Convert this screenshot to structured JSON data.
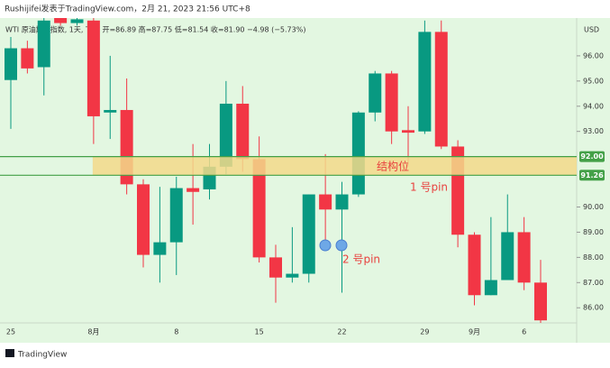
{
  "header": "Rushijifei发表于TradingView.com，2月 21, 2023 21:56 UTC+8",
  "legend": "WTI 原油期货指数, 1天, TVC  开=86.89  高=87.75  低=81.54  收=81.90  −4.98 (−5.73%)",
  "currency": "USD",
  "brand": "TradingView",
  "chart_data": {
    "type": "candlestick",
    "categories": [
      "25",
      null,
      null,
      null,
      null,
      "8月",
      null,
      null,
      null,
      null,
      "8",
      null,
      null,
      null,
      null,
      "15",
      null,
      null,
      null,
      null,
      "22",
      null,
      null,
      null,
      null,
      "29",
      null,
      null,
      "9月",
      null,
      null,
      "6",
      null
    ],
    "open": [
      95.04,
      96.3,
      95.55,
      97.5,
      97.3,
      97.4,
      93.75,
      93.85,
      90.9,
      88.1,
      88.6,
      90.75,
      90.7,
      91.6,
      94.1,
      91.9,
      88.0,
      87.2,
      87.35,
      90.5,
      89.9,
      90.5,
      93.75,
      95.3,
      93.05,
      93.0,
      96.95,
      92.4,
      88.9,
      86.5,
      87.1,
      89.0,
      87.0
    ],
    "high": [
      96.75,
      96.6,
      97.5,
      97.5,
      97.5,
      97.5,
      96.0,
      95.1,
      91.1,
      90.8,
      91.2,
      92.5,
      92.5,
      95.0,
      94.8,
      92.8,
      88.5,
      89.2,
      90.5,
      92.1,
      91.0,
      93.8,
      95.4,
      95.4,
      94.0,
      97.4,
      97.4,
      92.65,
      89.0,
      89.6,
      90.5,
      89.6,
      87.9
    ],
    "low": [
      93.1,
      95.3,
      94.43,
      97.2,
      97.2,
      92.5,
      92.7,
      90.5,
      87.6,
      87.0,
      87.3,
      89.3,
      90.3,
      91.3,
      91.4,
      87.8,
      86.2,
      87.0,
      87.0,
      88.6,
      86.6,
      90.4,
      93.4,
      92.5,
      91.6,
      92.9,
      92.3,
      88.4,
      86.1,
      86.5,
      87.1,
      86.7,
      85.4
    ],
    "close": [
      96.3,
      95.5,
      97.4,
      97.3,
      97.45,
      93.6,
      93.85,
      90.9,
      88.1,
      88.6,
      90.75,
      90.6,
      91.6,
      94.1,
      91.9,
      88.0,
      87.2,
      87.35,
      90.5,
      89.9,
      90.5,
      93.75,
      95.3,
      93.0,
      92.95,
      96.95,
      92.4,
      88.9,
      86.5,
      87.1,
      89.0,
      87.0,
      85.5
    ],
    "up_color": "#089981",
    "down_color": "#f23645",
    "ylim": [
      85.4,
      97.5
    ],
    "yticks": [
      {
        "value": 86,
        "label": "86.00"
      },
      {
        "value": 87,
        "label": "87.00"
      },
      {
        "value": 88,
        "label": "88.00"
      },
      {
        "value": 89,
        "label": "89.00"
      },
      {
        "value": 90,
        "label": "90.00"
      },
      {
        "value": 93,
        "label": "93.00"
      },
      {
        "value": 94,
        "label": "94.00"
      },
      {
        "value": 95,
        "label": "95.00"
      },
      {
        "value": 96,
        "label": "96.00"
      }
    ],
    "levels": [
      {
        "value": 92,
        "label": "92.00"
      },
      {
        "value": 91.26,
        "label": "91.26"
      }
    ],
    "level_color": "#43a047",
    "zone_label": "结构位",
    "annotations": [
      "1 号pin",
      "2 号pin"
    ]
  }
}
